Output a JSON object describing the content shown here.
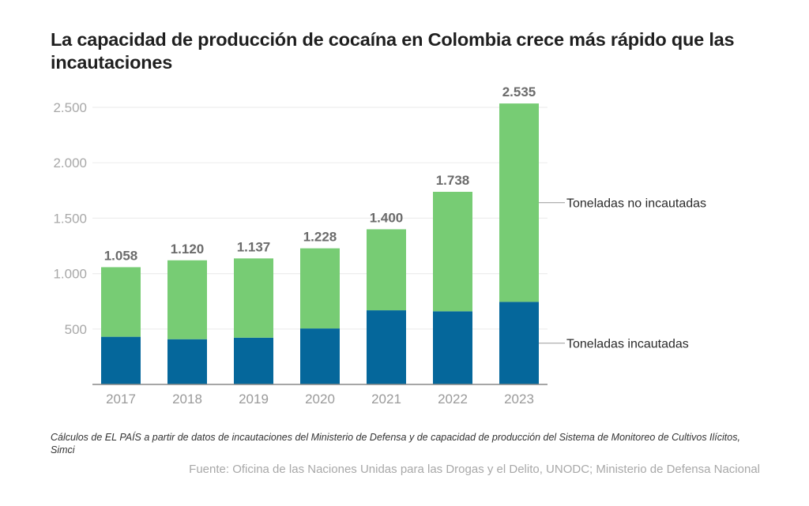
{
  "header": {
    "title": "La capacidad de producción de cocaína en Colombia crece más rápido que las incautaciones"
  },
  "footer": {
    "note": "Cálculos de EL PAÍS a partir de datos de incautaciones del Ministerio de Defensa y de capacidad de producción del Sistema de Monitoreo de Cultivos Ilícitos, Simci",
    "source": "Fuente: Oficina de las Naciones Unidas para las Drogas y el Delito, UNODC; Ministerio de Defensa Nacional"
  },
  "colors": {
    "seized": "#05679b",
    "not_seized": "#77cc74",
    "grid": "#eeeeee",
    "axis": "#888888"
  },
  "chart_data": {
    "type": "bar",
    "stacked": true,
    "title": "La capacidad de producción de cocaína en Colombia crece más rápido que las incautaciones",
    "xlabel": "",
    "ylabel": "",
    "categories": [
      "2017",
      "2018",
      "2019",
      "2020",
      "2021",
      "2022",
      "2023"
    ],
    "series": [
      {
        "name": "Toneladas incautadas",
        "color": "#05679b",
        "values": [
          430,
          408,
          422,
          505,
          669,
          660,
          745
        ]
      },
      {
        "name": "Toneladas no incautadas",
        "color": "#77cc74",
        "values": [
          628,
          712,
          715,
          723,
          731,
          1078,
          1790
        ]
      }
    ],
    "totals": [
      1058,
      1120,
      1137,
      1228,
      1400,
      1738,
      2535
    ],
    "total_labels": [
      "1.058",
      "1.120",
      "1.137",
      "1.228",
      "1.400",
      "1.738",
      "2.535"
    ],
    "ylim": [
      0,
      2500
    ],
    "yticks": [
      500,
      1000,
      1500,
      2000,
      2500
    ],
    "ytick_labels": [
      "500",
      "1.000",
      "1.500",
      "2.000",
      "2.500"
    ],
    "grid": true,
    "legend": "right, direct labels"
  }
}
